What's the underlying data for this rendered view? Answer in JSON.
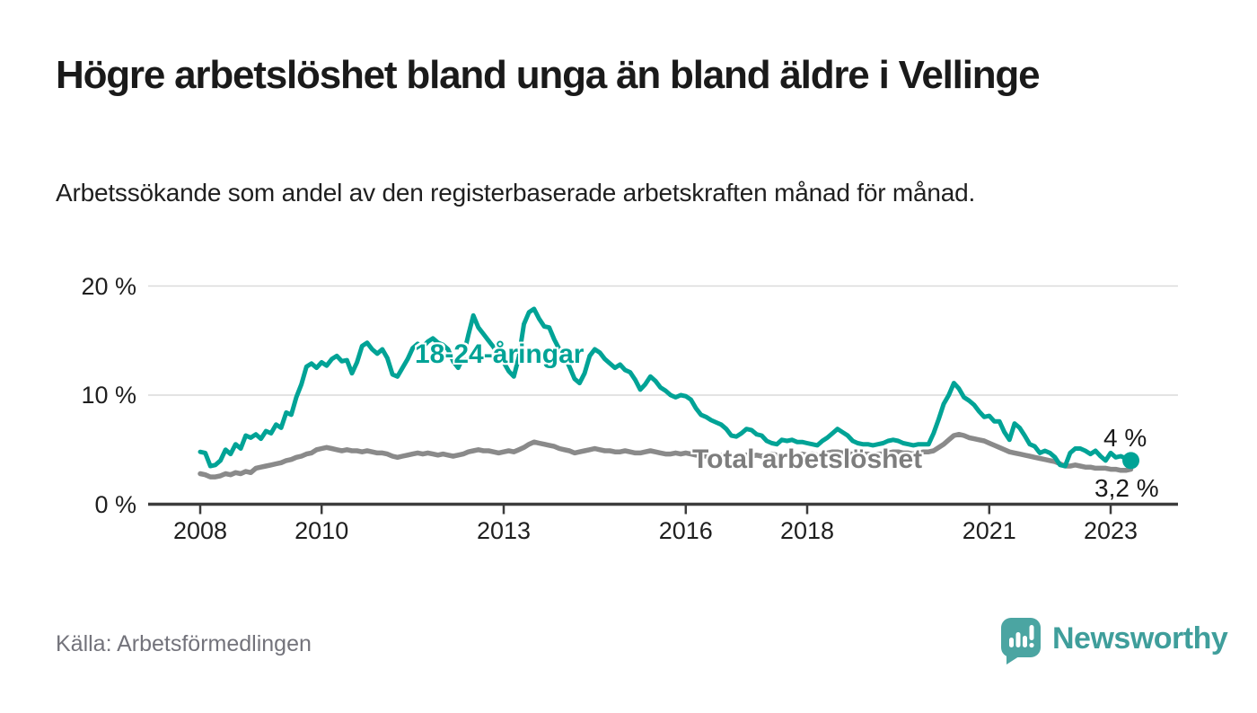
{
  "header": {
    "title": "Högre arbetslöshet bland unga än bland äldre i Vellinge",
    "subtitle": "Arbetssökande som andel av den registerbaserade arbetskraften månad för månad."
  },
  "footer": {
    "source": "Källa: Arbetsförmedlingen",
    "brand": "Newsworthy",
    "brand_icon": "speech-bubble-with-bar-chart-and-exclamation"
  },
  "colors": {
    "young_line": "#00a396",
    "total_line": "#8a8a8a",
    "total_label": "#7d7d7d",
    "axis": "#3c3c3c",
    "grid": "#dadada",
    "text": "#1a1a1a",
    "muted": "#73737b",
    "brand_teal": "#3f9e9b",
    "icon_teal": "#4ba5a2"
  },
  "chart_data": {
    "type": "line",
    "title": "Högre arbetslöshet bland unga än bland äldre i Vellinge",
    "xlabel": "",
    "ylabel": "Arbetssökande som andel av den registerbaserade arbetskraften",
    "x_unit": "decimal year, monthly step",
    "x_start": 2008,
    "x_step_months": 1,
    "xlim": [
      2007.15,
      2024.1
    ],
    "ylim": [
      0,
      21
    ],
    "grid": "horizontal",
    "legend": "inline-labels",
    "yticks": [
      {
        "value": 0,
        "label": "0 %"
      },
      {
        "value": 10,
        "label": "10 %"
      },
      {
        "value": 20,
        "label": "20 %"
      }
    ],
    "xticks": [
      {
        "value": 2008,
        "label": "2008"
      },
      {
        "value": 2010,
        "label": "2010"
      },
      {
        "value": 2013,
        "label": "2013"
      },
      {
        "value": 2016,
        "label": "2016"
      },
      {
        "value": 2018,
        "label": "2018"
      },
      {
        "value": 2021,
        "label": "2021"
      },
      {
        "value": 2023,
        "label": "2023"
      }
    ],
    "series": [
      {
        "name": "18-24-åringar",
        "color": "#00a396",
        "end_label": "4 %",
        "end_dot": true,
        "values": [
          4.8,
          4.7,
          3.5,
          3.6,
          4.0,
          5.0,
          4.6,
          5.5,
          5.1,
          6.3,
          6.1,
          6.4,
          6.0,
          6.7,
          6.5,
          7.3,
          7.0,
          8.4,
          8.2,
          9.8,
          11.0,
          12.6,
          12.9,
          12.5,
          13.0,
          12.7,
          13.3,
          13.6,
          13.1,
          13.2,
          12.0,
          13.0,
          14.5,
          14.8,
          14.2,
          13.8,
          14.2,
          13.4,
          11.9,
          11.7,
          12.5,
          13.3,
          14.3,
          14.7,
          14.4,
          14.9,
          15.2,
          14.8,
          14.6,
          14.2,
          13.1,
          12.5,
          13.5,
          15.5,
          17.3,
          16.2,
          15.6,
          15.0,
          14.4,
          13.6,
          13.0,
          12.2,
          11.7,
          13.5,
          16.5,
          17.6,
          17.9,
          17.0,
          16.3,
          16.2,
          15.1,
          14.2,
          13.6,
          12.6,
          11.5,
          11.1,
          12.0,
          13.6,
          14.2,
          13.9,
          13.3,
          12.9,
          12.5,
          12.8,
          12.3,
          12.1,
          11.4,
          10.5,
          11.0,
          11.7,
          11.3,
          10.7,
          10.4,
          10.0,
          9.8,
          10.0,
          9.9,
          9.6,
          8.8,
          8.2,
          8.0,
          7.7,
          7.5,
          7.3,
          6.9,
          6.3,
          6.2,
          6.5,
          6.9,
          6.8,
          6.4,
          6.3,
          5.8,
          5.6,
          5.5,
          5.9,
          5.8,
          5.9,
          5.7,
          5.7,
          5.6,
          5.5,
          5.4,
          5.8,
          6.1,
          6.5,
          6.9,
          6.6,
          6.3,
          5.8,
          5.6,
          5.5,
          5.5,
          5.4,
          5.5,
          5.6,
          5.8,
          5.9,
          5.8,
          5.6,
          5.5,
          5.4,
          5.5,
          5.5,
          5.5,
          6.5,
          7.8,
          9.2,
          10.0,
          11.1,
          10.6,
          9.8,
          9.5,
          9.1,
          8.5,
          8.0,
          8.1,
          7.6,
          7.6,
          6.6,
          5.9,
          7.4,
          7.0,
          6.3,
          5.5,
          5.3,
          4.7,
          4.9,
          4.7,
          4.3,
          3.6,
          3.5,
          4.7,
          5.1,
          5.1,
          4.9,
          4.6,
          4.9,
          4.4,
          4.0,
          4.7,
          4.3,
          4.4,
          4.2,
          4.0
        ]
      },
      {
        "name": "Total arbetslöshet",
        "color": "#8a8a8a",
        "end_label": "3,2 %",
        "end_dot": false,
        "values": [
          2.8,
          2.7,
          2.5,
          2.5,
          2.6,
          2.8,
          2.7,
          2.9,
          2.8,
          3.0,
          2.9,
          3.3,
          3.4,
          3.5,
          3.6,
          3.7,
          3.8,
          4.0,
          4.1,
          4.3,
          4.4,
          4.6,
          4.7,
          5.0,
          5.1,
          5.2,
          5.1,
          5.0,
          4.9,
          5.0,
          4.9,
          4.9,
          4.8,
          4.9,
          4.8,
          4.7,
          4.7,
          4.6,
          4.4,
          4.3,
          4.4,
          4.5,
          4.6,
          4.7,
          4.6,
          4.7,
          4.6,
          4.5,
          4.6,
          4.5,
          4.4,
          4.5,
          4.6,
          4.8,
          4.9,
          5.0,
          4.9,
          4.9,
          4.8,
          4.7,
          4.8,
          4.9,
          4.8,
          5.0,
          5.2,
          5.5,
          5.7,
          5.6,
          5.5,
          5.4,
          5.3,
          5.1,
          5.0,
          4.9,
          4.7,
          4.8,
          4.9,
          5.0,
          5.1,
          5.0,
          4.9,
          4.9,
          4.8,
          4.8,
          4.9,
          4.8,
          4.7,
          4.7,
          4.8,
          4.9,
          4.8,
          4.7,
          4.6,
          4.6,
          4.7,
          4.6,
          4.7,
          4.6,
          4.5,
          4.5,
          4.4,
          4.5,
          4.4,
          4.5,
          4.4,
          4.5,
          4.4,
          4.5,
          4.5,
          4.4,
          4.5,
          4.4,
          4.5,
          4.6,
          4.5,
          4.5,
          4.4,
          4.5,
          4.5,
          4.6,
          4.5,
          4.6,
          4.5,
          4.6,
          4.7,
          4.8,
          4.8,
          4.7,
          4.6,
          4.6,
          4.5,
          4.6,
          4.6,
          4.5,
          4.6,
          4.6,
          4.7,
          4.8,
          4.8,
          4.7,
          4.7,
          4.6,
          4.7,
          4.8,
          4.8,
          4.9,
          5.2,
          5.5,
          5.9,
          6.3,
          6.4,
          6.3,
          6.1,
          6.0,
          5.9,
          5.8,
          5.6,
          5.4,
          5.2,
          5.0,
          4.8,
          4.7,
          4.6,
          4.5,
          4.4,
          4.3,
          4.2,
          4.1,
          4.0,
          3.9,
          3.7,
          3.5,
          3.5,
          3.6,
          3.5,
          3.4,
          3.4,
          3.3,
          3.3,
          3.3,
          3.2,
          3.2,
          3.1,
          3.1,
          3.2
        ]
      }
    ]
  }
}
